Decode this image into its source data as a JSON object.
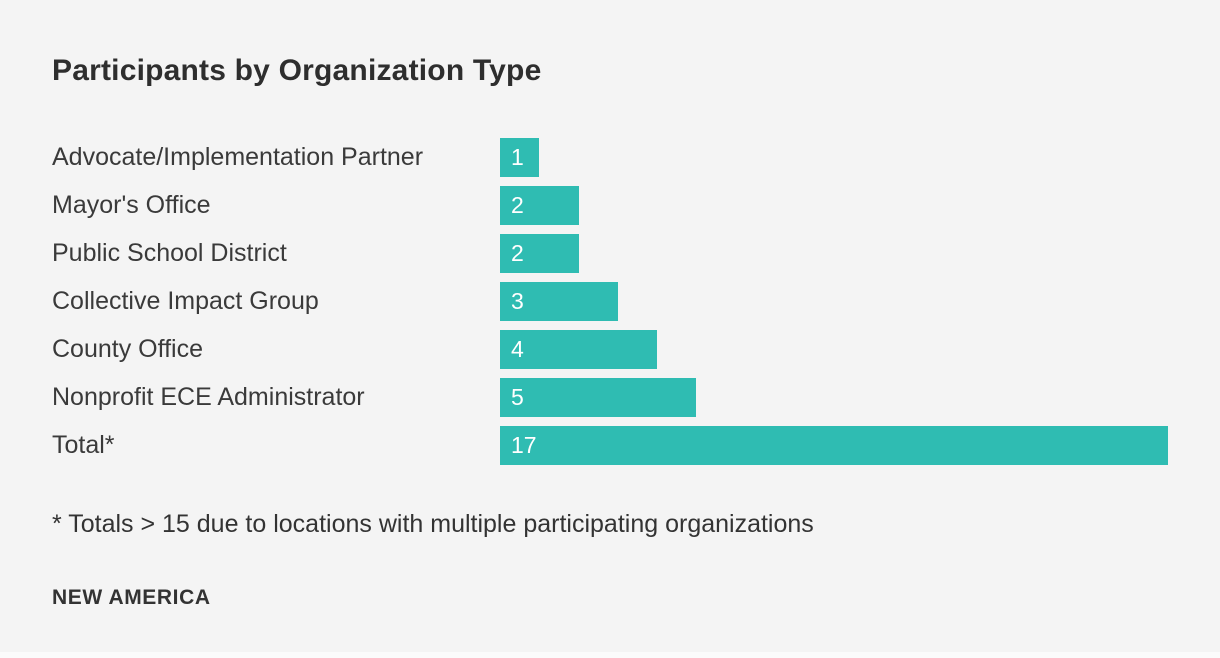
{
  "chart_data": {
    "type": "bar",
    "orientation": "horizontal",
    "title": "Participants by Organization Type",
    "categories": [
      "Advocate/Implementation Partner",
      "Mayor's Office",
      "Public School District",
      "Collective Impact Group",
      "County Office",
      "Nonprofit ECE Administrator",
      "Total*"
    ],
    "values": [
      1,
      2,
      2,
      3,
      4,
      5,
      17
    ],
    "value_labels": [
      "1",
      "2",
      "2",
      "3",
      "4",
      "5",
      "17"
    ],
    "xlabel": "",
    "ylabel": "",
    "xlim": [
      0,
      17
    ],
    "grid": false,
    "legend": false,
    "bar_color": "#2FBCB2",
    "value_label_color": "#FFFFFF"
  },
  "footnote": "* Totals > 15 due to locations with multiple participating organizations",
  "brand": "NEW AMERICA",
  "colors": {
    "background": "#F4F4F4",
    "title_text": "#2E2E2E",
    "label_text": "#3A3A3A"
  }
}
